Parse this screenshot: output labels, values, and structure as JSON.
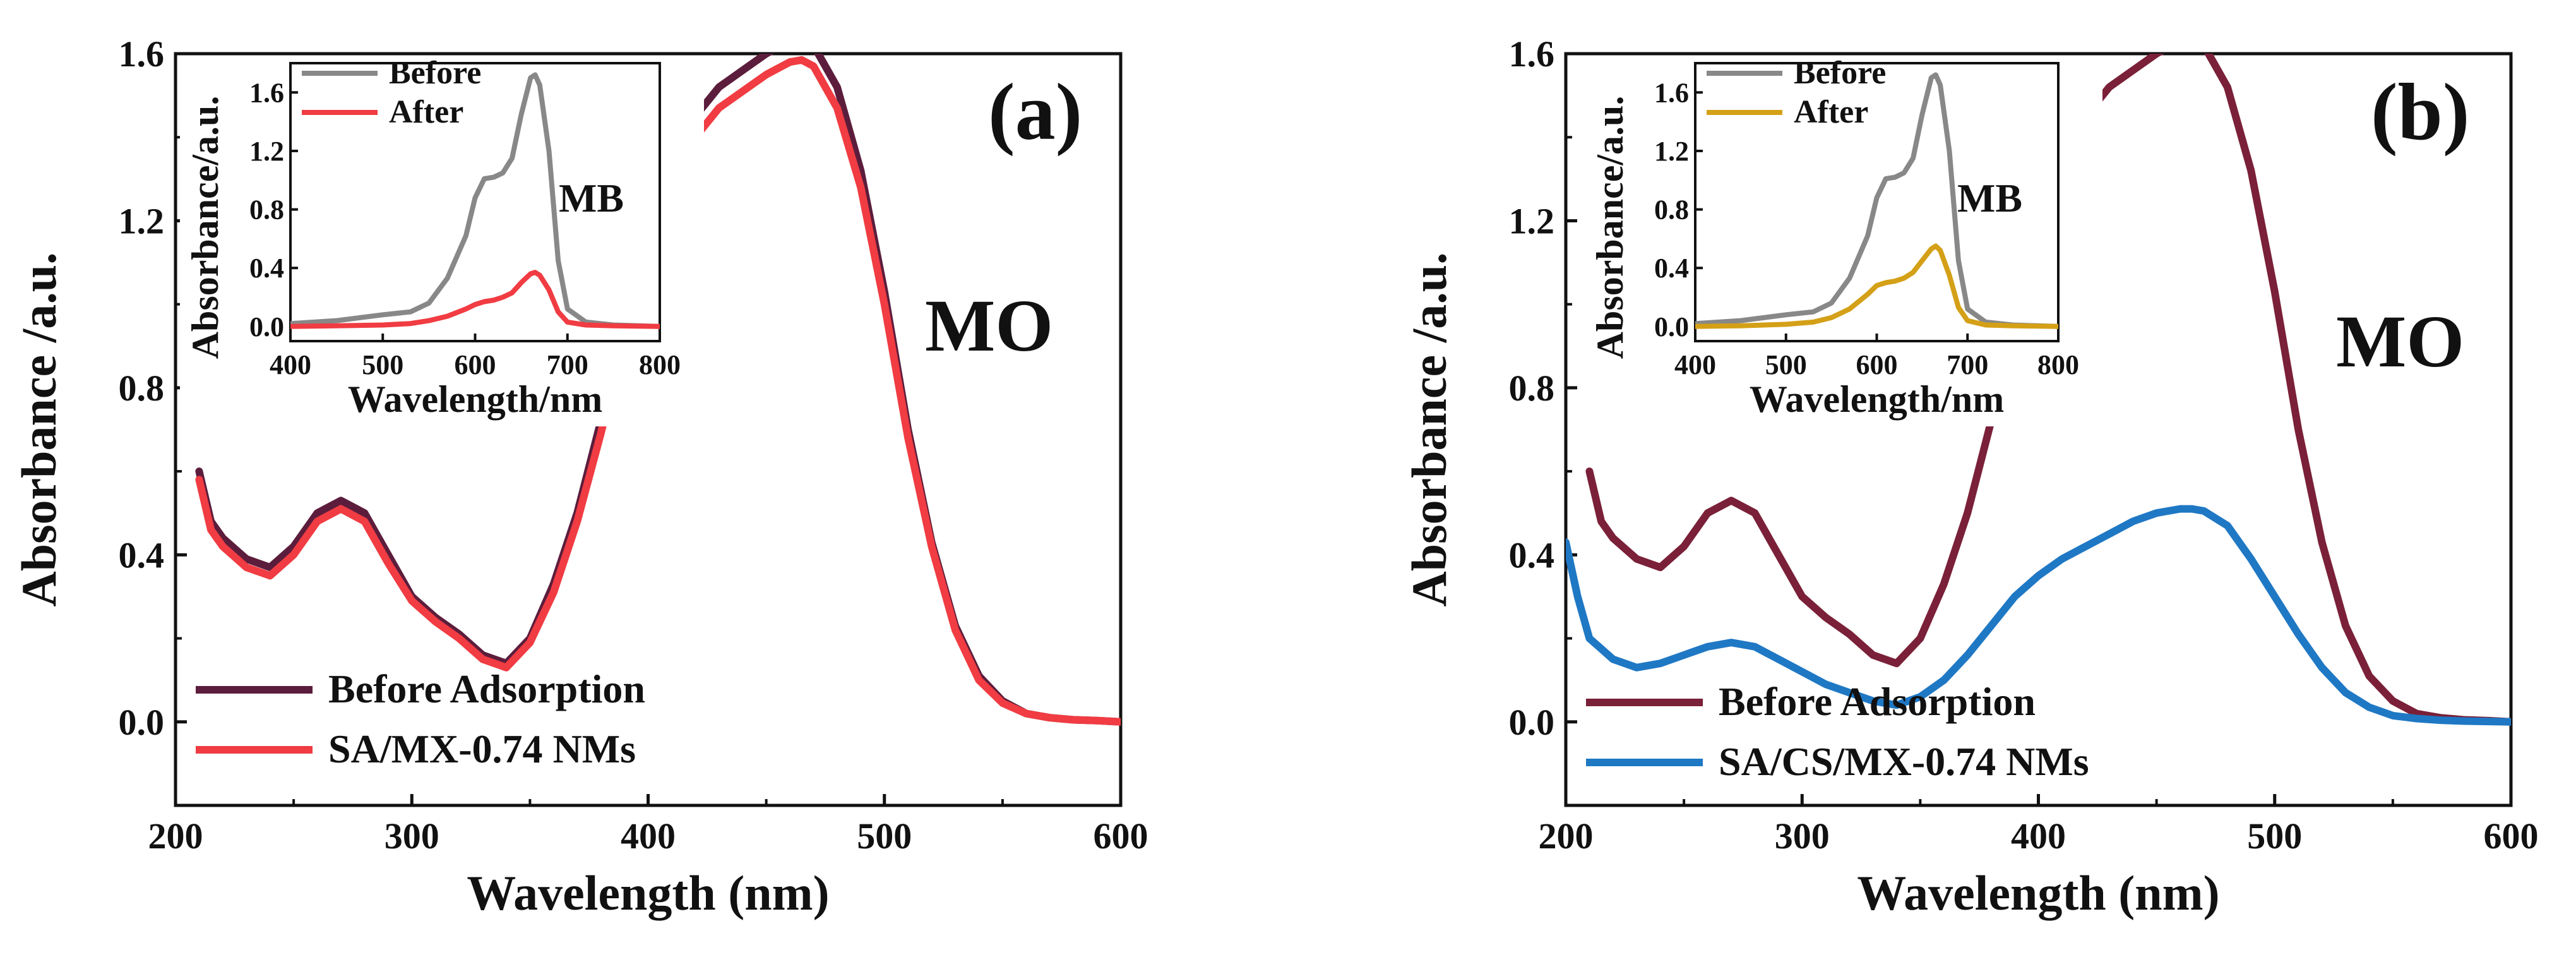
{
  "chart_data": [
    {
      "type": "line",
      "panel_label": "(a)",
      "dye_label": "MO",
      "xlabel": "Wavelength (nm)",
      "ylabel": "Absorbance /a.u.",
      "xlim": [
        200,
        600
      ],
      "ylim": [
        -0.2,
        1.6
      ],
      "xticks": [
        "200",
        "300",
        "400",
        "500",
        "600"
      ],
      "yticks": [
        "0.0",
        "0.4",
        "0.8",
        "1.2",
        "1.6"
      ],
      "legend_position": "bottom-left",
      "series": [
        {
          "name": "Before Adsorption",
          "color": "#5c1d3c",
          "x": [
            210,
            215,
            220,
            230,
            240,
            250,
            260,
            270,
            280,
            290,
            300,
            310,
            320,
            330,
            340,
            350,
            360,
            370,
            380,
            390,
            400,
            410,
            420,
            430,
            440,
            450,
            460,
            465,
            470,
            480,
            490,
            500,
            510,
            520,
            530,
            540,
            550,
            560,
            570,
            580,
            590,
            600
          ],
          "y": [
            0.6,
            0.48,
            0.44,
            0.39,
            0.37,
            0.42,
            0.5,
            0.53,
            0.5,
            0.4,
            0.3,
            0.25,
            0.21,
            0.16,
            0.14,
            0.2,
            0.33,
            0.5,
            0.72,
            0.96,
            1.17,
            1.33,
            1.45,
            1.52,
            1.56,
            1.6,
            1.63,
            1.635,
            1.62,
            1.52,
            1.32,
            1.03,
            0.7,
            0.43,
            0.23,
            0.11,
            0.05,
            0.02,
            0.01,
            0.005,
            0.003,
            0.0
          ]
        },
        {
          "name": "SA/MX-0.74 NMs",
          "color": "#f03c42",
          "x": [
            210,
            215,
            220,
            230,
            240,
            250,
            260,
            270,
            280,
            290,
            300,
            310,
            320,
            330,
            340,
            350,
            360,
            370,
            380,
            390,
            400,
            410,
            420,
            430,
            440,
            450,
            460,
            465,
            470,
            480,
            490,
            500,
            510,
            520,
            530,
            540,
            550,
            560,
            570,
            580,
            590,
            600
          ],
          "y": [
            0.58,
            0.46,
            0.42,
            0.37,
            0.35,
            0.4,
            0.48,
            0.51,
            0.48,
            0.38,
            0.29,
            0.24,
            0.2,
            0.15,
            0.13,
            0.19,
            0.31,
            0.48,
            0.69,
            0.92,
            1.12,
            1.28,
            1.4,
            1.47,
            1.51,
            1.55,
            1.58,
            1.585,
            1.57,
            1.47,
            1.28,
            1.0,
            0.68,
            0.42,
            0.22,
            0.1,
            0.045,
            0.02,
            0.01,
            0.005,
            0.003,
            0.0
          ]
        }
      ],
      "inset": {
        "dye_label": "MB",
        "xlabel": "Wavelength/nm",
        "ylabel": "Absorbance/a.u.",
        "xlim": [
          400,
          800
        ],
        "ylim": [
          -0.1,
          1.8
        ],
        "xticks": [
          "400",
          "500",
          "600",
          "700",
          "800"
        ],
        "yticks": [
          "0.0",
          "0.4",
          "0.8",
          "1.2",
          "1.6"
        ],
        "legend_position": "top-left",
        "series": [
          {
            "name": "Before",
            "color": "#888888",
            "x": [
              400,
              450,
              500,
              530,
              550,
              570,
              590,
              600,
              610,
              620,
              630,
              640,
              650,
              660,
              665,
              670,
              680,
              690,
              700,
              720,
              750,
              800
            ],
            "y": [
              0.02,
              0.04,
              0.08,
              0.1,
              0.16,
              0.33,
              0.62,
              0.88,
              1.01,
              1.02,
              1.05,
              1.15,
              1.45,
              1.7,
              1.72,
              1.65,
              1.2,
              0.45,
              0.12,
              0.03,
              0.01,
              0.0
            ]
          },
          {
            "name": "After",
            "color": "#f03c42",
            "x": [
              400,
              450,
              500,
              530,
              550,
              570,
              590,
              600,
              610,
              620,
              630,
              640,
              650,
              660,
              665,
              670,
              680,
              690,
              700,
              720,
              750,
              800
            ],
            "y": [
              0.0,
              0.005,
              0.01,
              0.02,
              0.04,
              0.07,
              0.12,
              0.15,
              0.17,
              0.18,
              0.2,
              0.23,
              0.3,
              0.36,
              0.37,
              0.35,
              0.25,
              0.1,
              0.03,
              0.01,
              0.005,
              0.0
            ]
          }
        ]
      }
    },
    {
      "type": "line",
      "panel_label": "(b)",
      "dye_label": "MO",
      "xlabel": "Wavelength (nm)",
      "ylabel": "Absorbance /a.u.",
      "xlim": [
        200,
        600
      ],
      "ylim": [
        -0.2,
        1.6
      ],
      "xticks": [
        "200",
        "300",
        "400",
        "500",
        "600"
      ],
      "yticks": [
        "0.0",
        "0.4",
        "0.8",
        "1.2",
        "1.6"
      ],
      "legend_position": "bottom-left",
      "series": [
        {
          "name": "Before Adsorption",
          "color": "#7a2038",
          "x": [
            210,
            215,
            220,
            230,
            240,
            250,
            260,
            270,
            280,
            290,
            300,
            310,
            320,
            330,
            340,
            350,
            360,
            370,
            380,
            390,
            400,
            410,
            420,
            430,
            440,
            450,
            460,
            465,
            470,
            480,
            490,
            500,
            510,
            520,
            530,
            540,
            550,
            560,
            570,
            580,
            590,
            600
          ],
          "y": [
            0.6,
            0.48,
            0.44,
            0.39,
            0.37,
            0.42,
            0.5,
            0.53,
            0.5,
            0.4,
            0.3,
            0.25,
            0.21,
            0.16,
            0.14,
            0.2,
            0.33,
            0.5,
            0.72,
            0.96,
            1.17,
            1.33,
            1.45,
            1.52,
            1.56,
            1.6,
            1.63,
            1.635,
            1.62,
            1.52,
            1.32,
            1.03,
            0.7,
            0.43,
            0.23,
            0.11,
            0.05,
            0.02,
            0.01,
            0.005,
            0.003,
            0.0
          ]
        },
        {
          "name": "SA/CS/MX-0.74 NMs",
          "color": "#1f78c4",
          "x": [
            200,
            205,
            210,
            220,
            230,
            240,
            250,
            260,
            270,
            280,
            290,
            300,
            310,
            320,
            330,
            340,
            350,
            360,
            370,
            380,
            390,
            400,
            410,
            420,
            430,
            440,
            450,
            460,
            465,
            470,
            480,
            490,
            500,
            510,
            520,
            530,
            540,
            550,
            560,
            570,
            580,
            590,
            600
          ],
          "y": [
            0.43,
            0.3,
            0.2,
            0.15,
            0.13,
            0.14,
            0.16,
            0.18,
            0.19,
            0.18,
            0.15,
            0.12,
            0.09,
            0.07,
            0.05,
            0.04,
            0.06,
            0.1,
            0.16,
            0.23,
            0.3,
            0.35,
            0.39,
            0.42,
            0.45,
            0.48,
            0.5,
            0.51,
            0.51,
            0.505,
            0.47,
            0.39,
            0.3,
            0.21,
            0.13,
            0.07,
            0.035,
            0.015,
            0.008,
            0.004,
            0.002,
            0.001,
            0.0
          ]
        }
      ],
      "inset": {
        "dye_label": "MB",
        "xlabel": "Wavelength/nm",
        "ylabel": "Absorbance/a.u.",
        "xlim": [
          400,
          800
        ],
        "ylim": [
          -0.1,
          1.8
        ],
        "xticks": [
          "400",
          "500",
          "600",
          "700",
          "800"
        ],
        "yticks": [
          "0.0",
          "0.4",
          "0.8",
          "1.2",
          "1.6"
        ],
        "legend_position": "top-left",
        "series": [
          {
            "name": "Before",
            "color": "#888888",
            "x": [
              400,
              450,
              500,
              530,
              550,
              570,
              590,
              600,
              610,
              620,
              630,
              640,
              650,
              660,
              665,
              670,
              680,
              690,
              700,
              720,
              750,
              800
            ],
            "y": [
              0.02,
              0.04,
              0.08,
              0.1,
              0.16,
              0.33,
              0.62,
              0.88,
              1.01,
              1.02,
              1.05,
              1.15,
              1.45,
              1.7,
              1.72,
              1.65,
              1.2,
              0.45,
              0.12,
              0.03,
              0.01,
              0.0
            ]
          },
          {
            "name": "After",
            "color": "#d4a017",
            "x": [
              400,
              450,
              500,
              530,
              550,
              570,
              590,
              600,
              610,
              620,
              630,
              640,
              650,
              660,
              665,
              670,
              680,
              690,
              700,
              720,
              750,
              800
            ],
            "y": [
              0.0,
              0.005,
              0.015,
              0.03,
              0.06,
              0.12,
              0.22,
              0.28,
              0.3,
              0.31,
              0.33,
              0.37,
              0.45,
              0.53,
              0.55,
              0.52,
              0.35,
              0.13,
              0.04,
              0.01,
              0.005,
              0.0
            ]
          }
        ]
      }
    }
  ]
}
